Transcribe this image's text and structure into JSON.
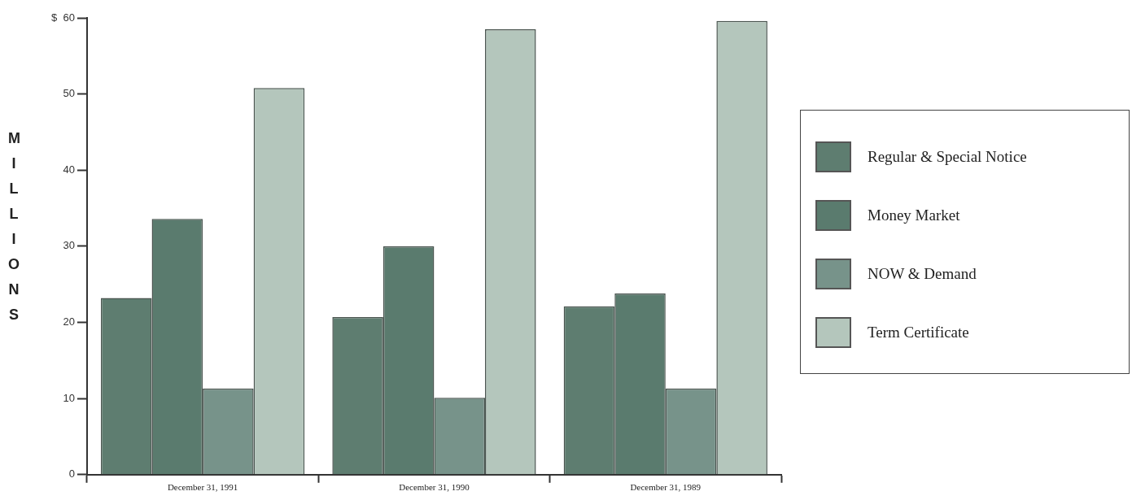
{
  "chart_data": {
    "type": "bar",
    "ylabel": "MILLIONS",
    "categories": [
      "December 31, 1991",
      "December 31, 1990",
      "December 31, 1989"
    ],
    "series": [
      {
        "name": "Regular & Special Notice",
        "color": "#5e7d70",
        "values": [
          23.2,
          20.7,
          22.1
        ]
      },
      {
        "name": "Money Market",
        "color": "#5a7b6e",
        "values": [
          33.6,
          30.0,
          23.8
        ]
      },
      {
        "name": "NOW & Demand",
        "color": "#77938a",
        "values": [
          11.3,
          10.1,
          11.3
        ]
      },
      {
        "name": "Term Certificate",
        "color": "#b4c6bc",
        "values": [
          50.8,
          58.5,
          59.6
        ]
      }
    ],
    "ylim": [
      0,
      60
    ],
    "yticks": [
      0,
      10,
      20,
      30,
      40,
      {
        "value": 60,
        "label": "$  60"
      },
      50
    ],
    "grid": false,
    "legend": "right"
  }
}
